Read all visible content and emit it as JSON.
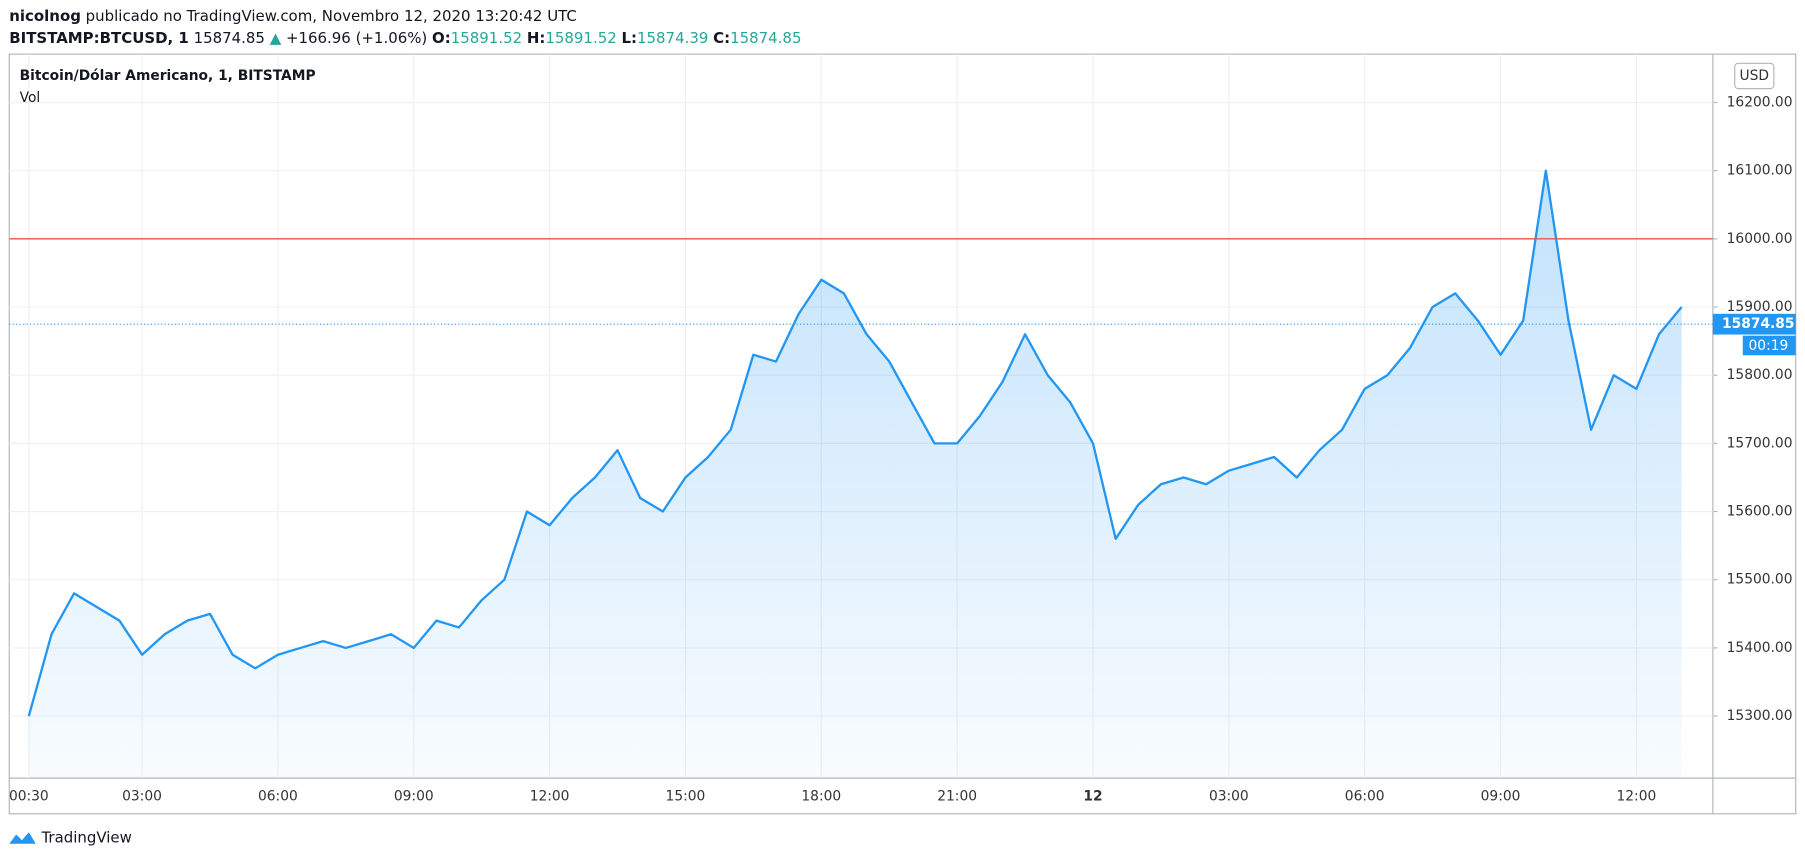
{
  "header": {
    "author": "nicolnog",
    "published": "publicado no TradingView.com, Novembro 12, 2020 13:20:42 UTC",
    "symbol": "BITSTAMP:BTCUSD, 1",
    "price": "15874.85",
    "arrow": "▲",
    "change": "+166.96 (+1.06%)",
    "o_label": "O:",
    "o": "15891.52",
    "h_label": "H:",
    "h": "15891.52",
    "l_label": "L:",
    "l": "15874.39",
    "c_label": "C:",
    "c": "15874.85"
  },
  "chart_data": {
    "type": "area",
    "legend": "Bitcoin/Dólar Americano, 1, BITSTAMP",
    "volume_label": "Vol",
    "currency": "USD",
    "color": "#2196f3",
    "categories": [
      "00:30",
      null,
      null,
      null,
      null,
      "03:00",
      null,
      null,
      null,
      null,
      null,
      "06:00",
      null,
      null,
      null,
      null,
      null,
      "09:00",
      null,
      null,
      null,
      null,
      null,
      "12:00",
      null,
      null,
      null,
      null,
      null,
      "15:00",
      null,
      null,
      null,
      null,
      null,
      "18:00",
      null,
      null,
      null,
      null,
      null,
      "21:00",
      null,
      null,
      null,
      null,
      null,
      "12",
      null,
      null,
      null,
      null,
      null,
      "03:00",
      null,
      null,
      null,
      null,
      null,
      "06:00",
      null,
      null,
      null,
      null,
      null,
      "09:00",
      null,
      null,
      null,
      null,
      null,
      "12:00",
      null,
      null
    ],
    "values": [
      15300,
      15420,
      15480,
      15460,
      15440,
      15390,
      15420,
      15440,
      15450,
      15390,
      15370,
      15390,
      15400,
      15410,
      15400,
      15410,
      15420,
      15400,
      15440,
      15430,
      15470,
      15500,
      15600,
      15580,
      15620,
      15650,
      15690,
      15620,
      15600,
      15650,
      15680,
      15720,
      15830,
      15820,
      15890,
      15940,
      15920,
      15860,
      15820,
      15760,
      15700,
      15700,
      15740,
      15790,
      15860,
      15800,
      15760,
      15700,
      15560,
      15610,
      15640,
      15650,
      15640,
      15660,
      15670,
      15680,
      15650,
      15690,
      15720,
      15780,
      15800,
      15840,
      15900,
      15920,
      15880,
      15830,
      15880,
      16100,
      15880,
      15720,
      15800,
      15780,
      15860,
      15900
    ],
    "ylim": [
      15209,
      16271
    ],
    "yticks": [
      {
        "value": 15300,
        "label": "15300.00"
      },
      {
        "value": 15400,
        "label": "15400.00"
      },
      {
        "value": 15500,
        "label": "15500.00"
      },
      {
        "value": 15600,
        "label": "15600.00"
      },
      {
        "value": 15700,
        "label": "15700.00"
      },
      {
        "value": 15800,
        "label": "15800.00"
      },
      {
        "value": 15900,
        "label": "15900.00"
      },
      {
        "value": 16000,
        "label": "16000.00"
      },
      {
        "value": 16100,
        "label": "16100.00"
      },
      {
        "value": 16200,
        "label": "16200.00"
      }
    ],
    "grid": true,
    "hline": 16000,
    "hline_color": "#ef5350",
    "last_price": 15874.85,
    "countdown": "00:19"
  },
  "footer": {
    "brand": "TradingView"
  }
}
